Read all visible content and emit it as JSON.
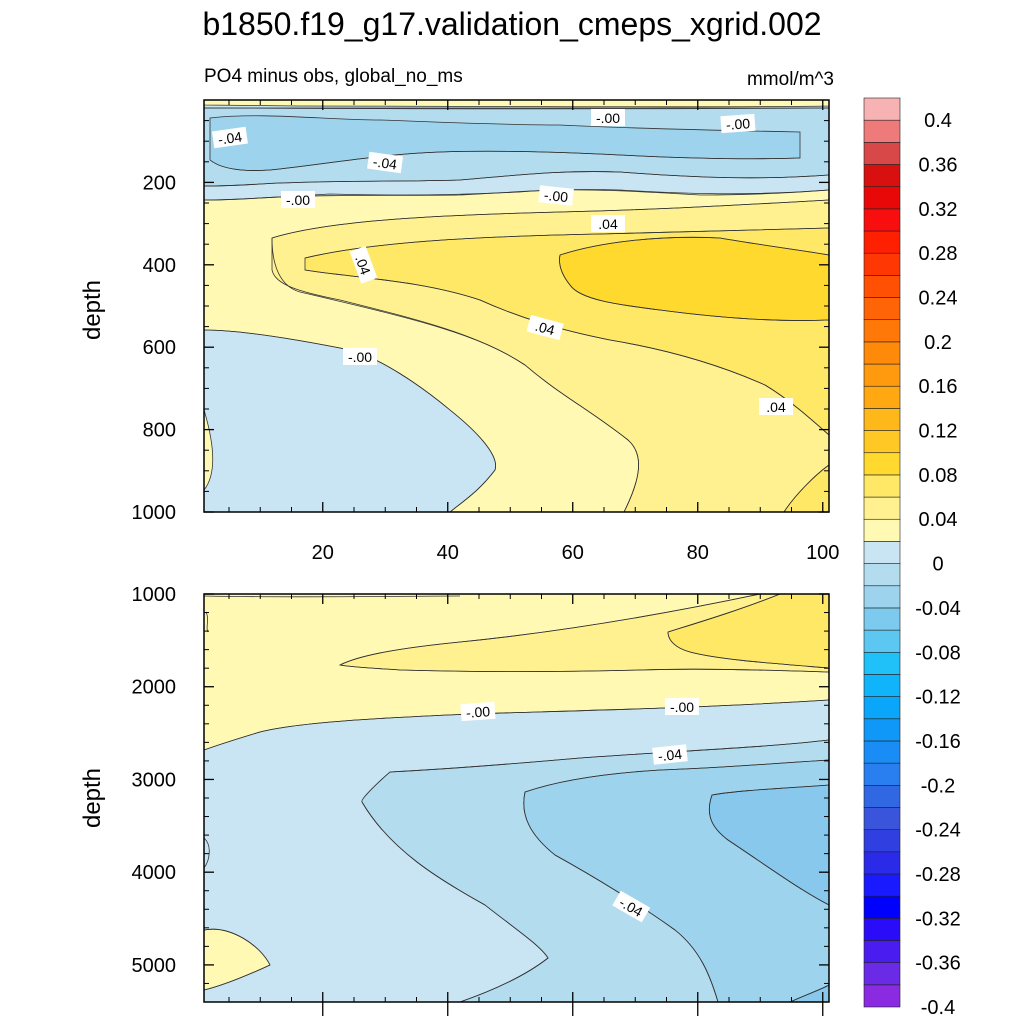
{
  "chart_data": {
    "type": "heatmap",
    "title": "b1850.f19_g17.validation_cmeps_xgrid.002",
    "subtitle_left": "PO4 minus obs, global_no_ms",
    "units": "mmol/m^3",
    "colorbar": {
      "tick_labels": [
        "0.4",
        "0.36",
        "0.32",
        "0.28",
        "0.24",
        "0.2",
        "0.16",
        "0.12",
        "0.08",
        "0.04",
        "0",
        "-0.04",
        "-0.08",
        "-0.12",
        "-0.16",
        "-0.2",
        "-0.24",
        "-0.28",
        "-0.32",
        "-0.36",
        "-0.4"
      ],
      "levels": [
        -0.4,
        -0.38,
        -0.36,
        -0.34,
        -0.32,
        -0.3,
        -0.28,
        -0.26,
        -0.24,
        -0.22,
        -0.2,
        -0.18,
        -0.16,
        -0.14,
        -0.12,
        -0.1,
        -0.08,
        -0.06,
        -0.04,
        -0.02,
        0,
        0.02,
        0.04,
        0.06,
        0.08,
        0.1,
        0.12,
        0.14,
        0.16,
        0.18,
        0.2,
        0.22,
        0.24,
        0.26,
        0.28,
        0.3,
        0.32,
        0.34,
        0.36,
        0.38,
        0.4
      ],
      "colors": [
        "#8a2be2",
        "#6a2ae6",
        "#4b1cf0",
        "#2b0cf8",
        "#0000ff",
        "#1a1aff",
        "#2a2ae8",
        "#3040e0",
        "#3a55dc",
        "#3068e4",
        "#2a7ff0",
        "#1a8cf5",
        "#0f98f8",
        "#0aa6fa",
        "#10b4fa",
        "#20c0f8",
        "#5cc8f2",
        "#7ccbee",
        "#9dd3ec",
        "#b4dcef",
        "#c9e5f3",
        "#fff9b3",
        "#fff190",
        "#ffe866",
        "#ffd92e",
        "#ffc824",
        "#ffb81a",
        "#ffa812",
        "#ff990d",
        "#ff8a0a",
        "#ff7808",
        "#ff6506",
        "#ff5004",
        "#ff3803",
        "#ff2002",
        "#f80e0e",
        "#e80808",
        "#d81010",
        "#d84848",
        "#ee7a7a",
        "#f7b3b3"
      ]
    },
    "top_panel": {
      "ylabel": "depth",
      "y_ticks": [
        200,
        400,
        600,
        800,
        1000
      ],
      "ylim": [
        0,
        1000
      ],
      "x_ticks": [
        20,
        40,
        60,
        80,
        100
      ],
      "xlim": [
        1,
        101
      ],
      "contour_labels": [
        "-.04",
        "-.04",
        "-.00",
        "-.00",
        "-.00",
        "-.00",
        ".04",
        ".04",
        ".04",
        "-.00",
        ".04"
      ]
    },
    "bottom_panel": {
      "ylabel": "depth",
      "y_ticks": [
        1000,
        2000,
        3000,
        4000,
        5000
      ],
      "ylim": [
        1000,
        5400
      ],
      "xlim": [
        1,
        101
      ],
      "contour_labels": [
        "-.00",
        "-.00",
        "-.04",
        "-.04"
      ]
    }
  }
}
